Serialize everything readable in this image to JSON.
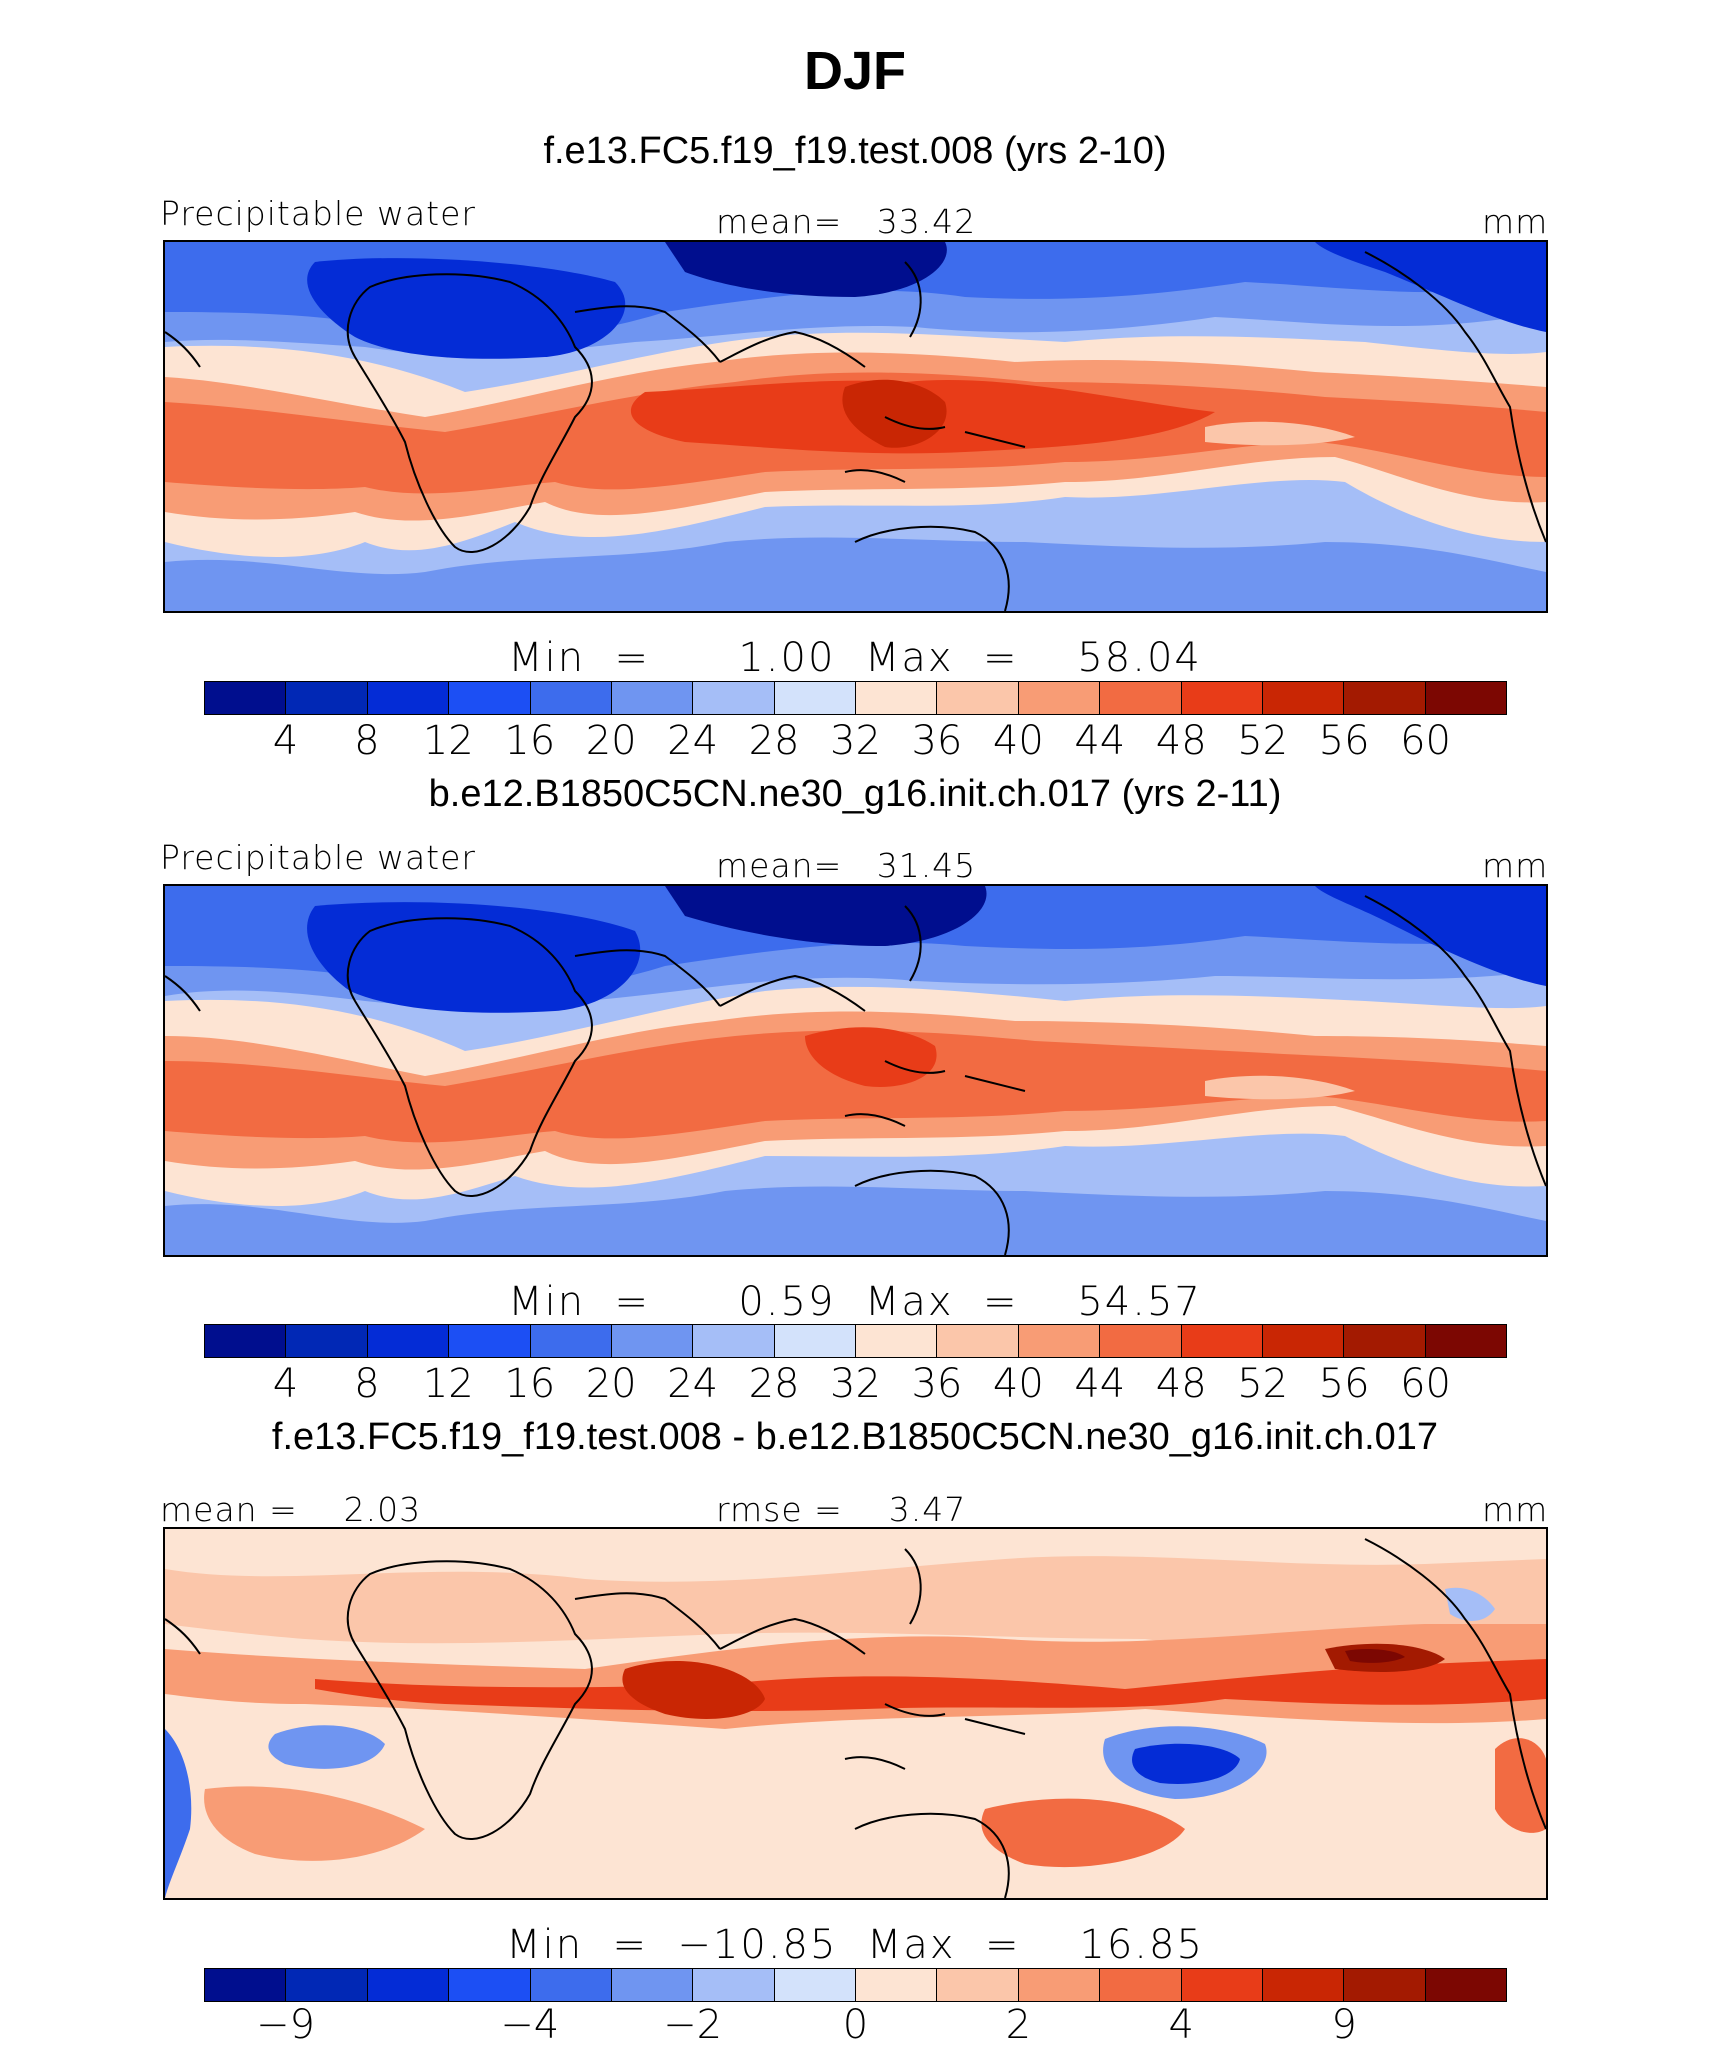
{
  "figure_title": "DJF",
  "colors": {
    "positive_palette": [
      "#000e8e",
      "#0128b5",
      "#042cd6",
      "#1c4ff4",
      "#3d6ced",
      "#6f95f1",
      "#a5bef7",
      "#d3e2fb",
      "#fde4d3",
      "#fbc6aa",
      "#f89c75",
      "#f26b42",
      "#e83c18",
      "#c92604",
      "#a31a01",
      "#7c0702"
    ],
    "diff_palette": [
      "#000e8e",
      "#0128b5",
      "#042cd6",
      "#1c4ff4",
      "#3d6ced",
      "#6f95f1",
      "#a5bef7",
      "#d3e2fb",
      "#fde4d3",
      "#fbc6aa",
      "#f89c75",
      "#f26b42",
      "#e83c18",
      "#c92604",
      "#a31a01",
      "#7c0702"
    ]
  },
  "panels": [
    {
      "id": "p1",
      "case_title": "f.e13.FC5.f19_f19.test.008 (yrs 2-10)",
      "left_label": "Precipitable water",
      "center_label": "mean=   33.42",
      "right_label": "mm",
      "minmax_text": "Min  =      1.00  Max  =    58.04",
      "cbar_ticks": [
        "4",
        "8",
        "12",
        "16",
        "20",
        "24",
        "28",
        "32",
        "36",
        "40",
        "44",
        "48",
        "52",
        "56",
        "60"
      ]
    },
    {
      "id": "p2",
      "case_title": "b.e12.B1850C5CN.ne30_g16.init.ch.017 (yrs 2-11)",
      "left_label": "Precipitable water",
      "center_label": "mean=   31.45",
      "right_label": "mm",
      "minmax_text": "Min  =      0.59  Max  =    54.57",
      "cbar_ticks": [
        "4",
        "8",
        "12",
        "16",
        "20",
        "24",
        "28",
        "32",
        "36",
        "40",
        "44",
        "48",
        "52",
        "56",
        "60"
      ]
    },
    {
      "id": "p3",
      "case_title": "f.e13.FC5.f19_f19.test.008 - b.e12.B1850C5CN.ne30_g16.init.ch.017",
      "left_label": "mean =    2.03",
      "center_label": "rmse =    3.47",
      "right_label": "mm",
      "minmax_text": "Min  =  −10.85  Max  =    16.85",
      "cbar_ticks": [
        "−9",
        "−4",
        "−2",
        "0",
        "2",
        "4",
        "9"
      ]
    }
  ],
  "chart_data": [
    {
      "type": "heatmap",
      "title": "f.e13.FC5.f19_f19.test.008 (yrs 2-10)",
      "variable": "Precipitable water",
      "units": "mm",
      "mean": 33.42,
      "min": 1.0,
      "max": 58.04,
      "contour_levels": [
        4,
        8,
        12,
        16,
        20,
        24,
        28,
        32,
        36,
        40,
        44,
        48,
        52,
        56,
        60
      ]
    },
    {
      "type": "heatmap",
      "title": "b.e12.B1850C5CN.ne30_g16.init.ch.017 (yrs 2-11)",
      "variable": "Precipitable water",
      "units": "mm",
      "mean": 31.45,
      "min": 0.59,
      "max": 54.57,
      "contour_levels": [
        4,
        8,
        12,
        16,
        20,
        24,
        28,
        32,
        36,
        40,
        44,
        48,
        52,
        56,
        60
      ]
    },
    {
      "type": "heatmap",
      "title": "f.e13.FC5.f19_f19.test.008 - b.e12.B1850C5CN.ne30_g16.init.ch.017",
      "units": "mm",
      "mean": 2.03,
      "rmse": 3.47,
      "min": -10.85,
      "max": 16.85,
      "contour_labels": [
        -9,
        -4,
        -2,
        0,
        2,
        4,
        9
      ]
    }
  ]
}
